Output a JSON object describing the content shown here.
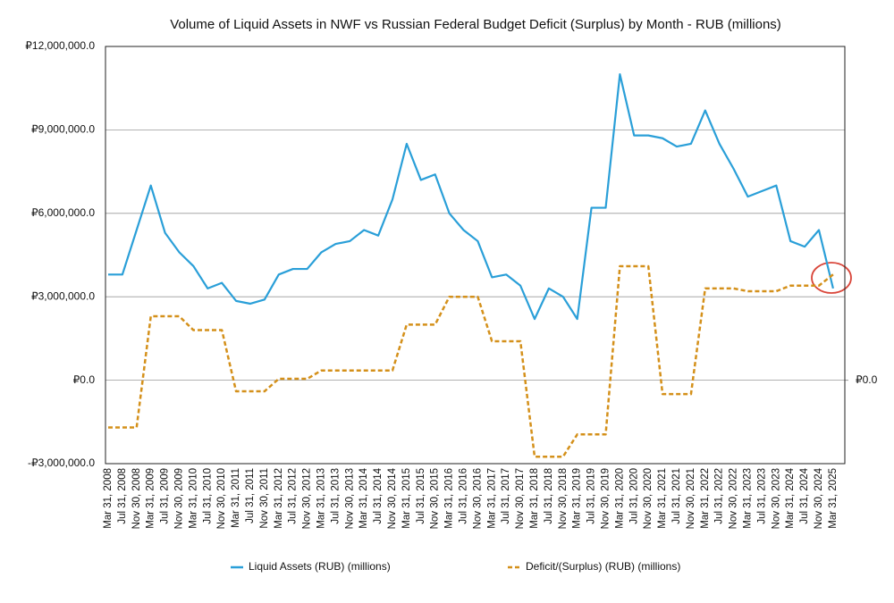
{
  "chart_data": {
    "type": "line",
    "title": "Volume of Liquid Assets in NWF vs Russian Federal Budget Deficit (Surplus) by Month - RUB (millions)",
    "categories": [
      "Mar 31, 2008",
      "Jul 31, 2008",
      "Nov 30, 2008",
      "Mar 31, 2009",
      "Jul 31, 2009",
      "Nov 30, 2009",
      "Mar 31, 2010",
      "Jul 31, 2010",
      "Nov 30, 2010",
      "Mar 31, 2011",
      "Jul 31, 2011",
      "Nov 30, 2011",
      "Mar 31, 2012",
      "Jul 31, 2012",
      "Nov 30, 2012",
      "Mar 31, 2013",
      "Jul 31, 2013",
      "Nov 30, 2013",
      "Mar 31, 2014",
      "Jul 31, 2014",
      "Nov 30, 2014",
      "Mar 31, 2015",
      "Jul 31, 2015",
      "Nov 30, 2015",
      "Mar 31, 2016",
      "Jul 31, 2016",
      "Nov 30, 2016",
      "Mar 31, 2017",
      "Jul 31, 2017",
      "Nov 30, 2017",
      "Mar 31, 2018",
      "Jul 31, 2018",
      "Nov 30, 2018",
      "Mar 31, 2019",
      "Jul 31, 2019",
      "Nov 30, 2019",
      "Mar 31, 2020",
      "Jul 31, 2020",
      "Nov 30, 2020",
      "Mar 31, 2021",
      "Jul 31, 2021",
      "Nov 30, 2021",
      "Mar 31, 2022",
      "Jul 31, 2022",
      "Nov 30, 2022",
      "Mar 31, 2023",
      "Jul 31, 2023",
      "Nov 30, 2023",
      "Mar 31, 2024",
      "Jul 31, 2024",
      "Nov 30, 2024",
      "Mar 31, 2025"
    ],
    "series": [
      {
        "name": "Liquid Assets (RUB) (millions)",
        "color": "#2a9fd8",
        "dash": false,
        "values": [
          3800000,
          3800000,
          5400000,
          7000000,
          5300000,
          4600000,
          4100000,
          3300000,
          3500000,
          2850000,
          2750000,
          2900000,
          3800000,
          4000000,
          4000000,
          4600000,
          4900000,
          5000000,
          5400000,
          5200000,
          6500000,
          8500000,
          7200000,
          7400000,
          6000000,
          5400000,
          5000000,
          3700000,
          3800000,
          3400000,
          2200000,
          3300000,
          3000000,
          2200000,
          6200000,
          6200000,
          11000000,
          8800000,
          8800000,
          8700000,
          8400000,
          8500000,
          9700000,
          8500000,
          7600000,
          6600000,
          6800000,
          7000000,
          5000000,
          4800000,
          5400000,
          3300000
        ]
      },
      {
        "name": "Deficit/(Surplus) (RUB) (millions)",
        "color": "#d4901a",
        "dash": true,
        "axis": "y2",
        "values": [
          -1700000,
          -1700000,
          -1700000,
          2300000,
          2300000,
          2300000,
          1800000,
          1800000,
          1800000,
          -400000,
          -400000,
          -400000,
          50000,
          50000,
          50000,
          350000,
          350000,
          350000,
          350000,
          350000,
          350000,
          2000000,
          2000000,
          2000000,
          3000000,
          3000000,
          3000000,
          1400000,
          1400000,
          1400000,
          -2750000,
          -2750000,
          -2750000,
          -1950000,
          -1950000,
          -1950000,
          4100000,
          4100000,
          4100000,
          -500000,
          -500000,
          -500000,
          3300000,
          3300000,
          3300000,
          3200000,
          3200000,
          3200000,
          3400000,
          3400000,
          3400000,
          3800000
        ]
      }
    ],
    "ylim": [
      -3000000,
      12000000
    ],
    "yticks": [
      {
        "value": -3000000,
        "label": "-₽3,000,000.0"
      },
      {
        "value": 0,
        "label": "₽0.0"
      },
      {
        "value": 3000000,
        "label": "₽3,000,000.0"
      },
      {
        "value": 6000000,
        "label": "₽6,000,000.0"
      },
      {
        "value": 9000000,
        "label": "₽9,000,000.0"
      },
      {
        "value": 12000000,
        "label": "₽12,000,000.0"
      }
    ],
    "y2lim": [
      -3000000,
      12000000
    ],
    "y2ticks": [
      {
        "value": 0,
        "label": "₽0.0"
      }
    ],
    "grid": true,
    "legend": "bottom"
  }
}
